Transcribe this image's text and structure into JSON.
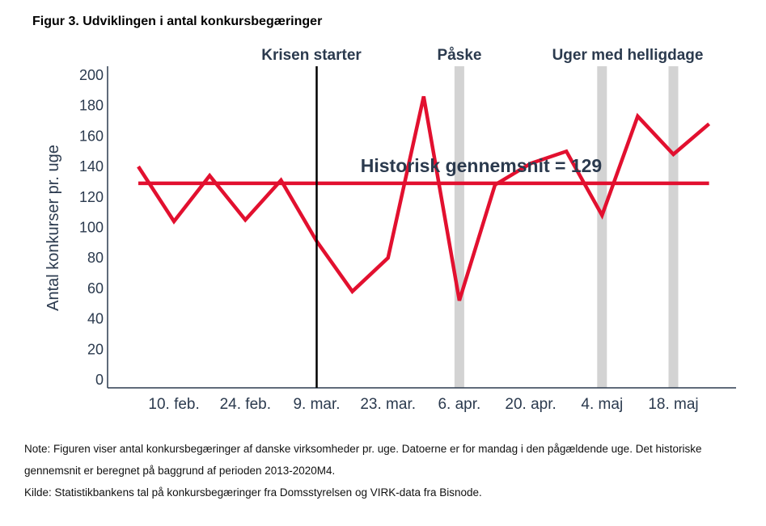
{
  "figure_title": "Figur 3. Udviklingen i antal konkursbegæringer",
  "colors": {
    "line": "#e2102f",
    "axis": "#2b3a4e",
    "band": "#d3d3d3",
    "marker": "#000000"
  },
  "chart_data": {
    "type": "line",
    "title": "",
    "ylabel": "Antal konkurser pr. uge",
    "ylim": [
      0,
      200
    ],
    "yticks": [
      0,
      20,
      40,
      60,
      80,
      100,
      120,
      140,
      160,
      180,
      200
    ],
    "x": [
      "3. feb.",
      "10. feb.",
      "17. feb.",
      "24. feb.",
      "2. mar.",
      "9. mar.",
      "16. mar.",
      "23. mar.",
      "30. mar.",
      "6. apr.",
      "13. apr.",
      "20. apr.",
      "27. apr.",
      "4. maj",
      "11. maj",
      "18. maj",
      "25. maj"
    ],
    "xtick_labels": [
      "10. feb.",
      "24. feb.",
      "9. mar.",
      "23. mar.",
      "6. apr.",
      "20. apr.",
      "4. maj",
      "18. maj"
    ],
    "series": [
      {
        "values": [
          140,
          104,
          134,
          105,
          131,
          91,
          58,
          80,
          186,
          52,
          128,
          142,
          150,
          108,
          173,
          148,
          168
        ]
      }
    ],
    "reference_line": {
      "value": 129,
      "label": "Historisk gennemsnit = 129"
    },
    "annotations": [
      {
        "label": "Krisen starter",
        "type": "vertical-line",
        "at": "9. mar."
      },
      {
        "label": "Påske",
        "type": "band",
        "at": [
          "6. apr."
        ]
      },
      {
        "label": "Uger med helligdage",
        "type": "band",
        "at": [
          "4. maj",
          "18. maj"
        ]
      }
    ],
    "grid": false,
    "legend": "none"
  },
  "notes": [
    "Note: Figuren viser antal konkursbegæringer af danske virksomheder pr. uge. Datoerne er for mandag i den pågældende uge. Det historiske gennemsnit er beregnet på baggrund af perioden 2013-2020M4.",
    "Kilde: Statistikbankens tal på konkursbegæringer fra Domsstyrelsen og VIRK-data fra Bisnode."
  ]
}
